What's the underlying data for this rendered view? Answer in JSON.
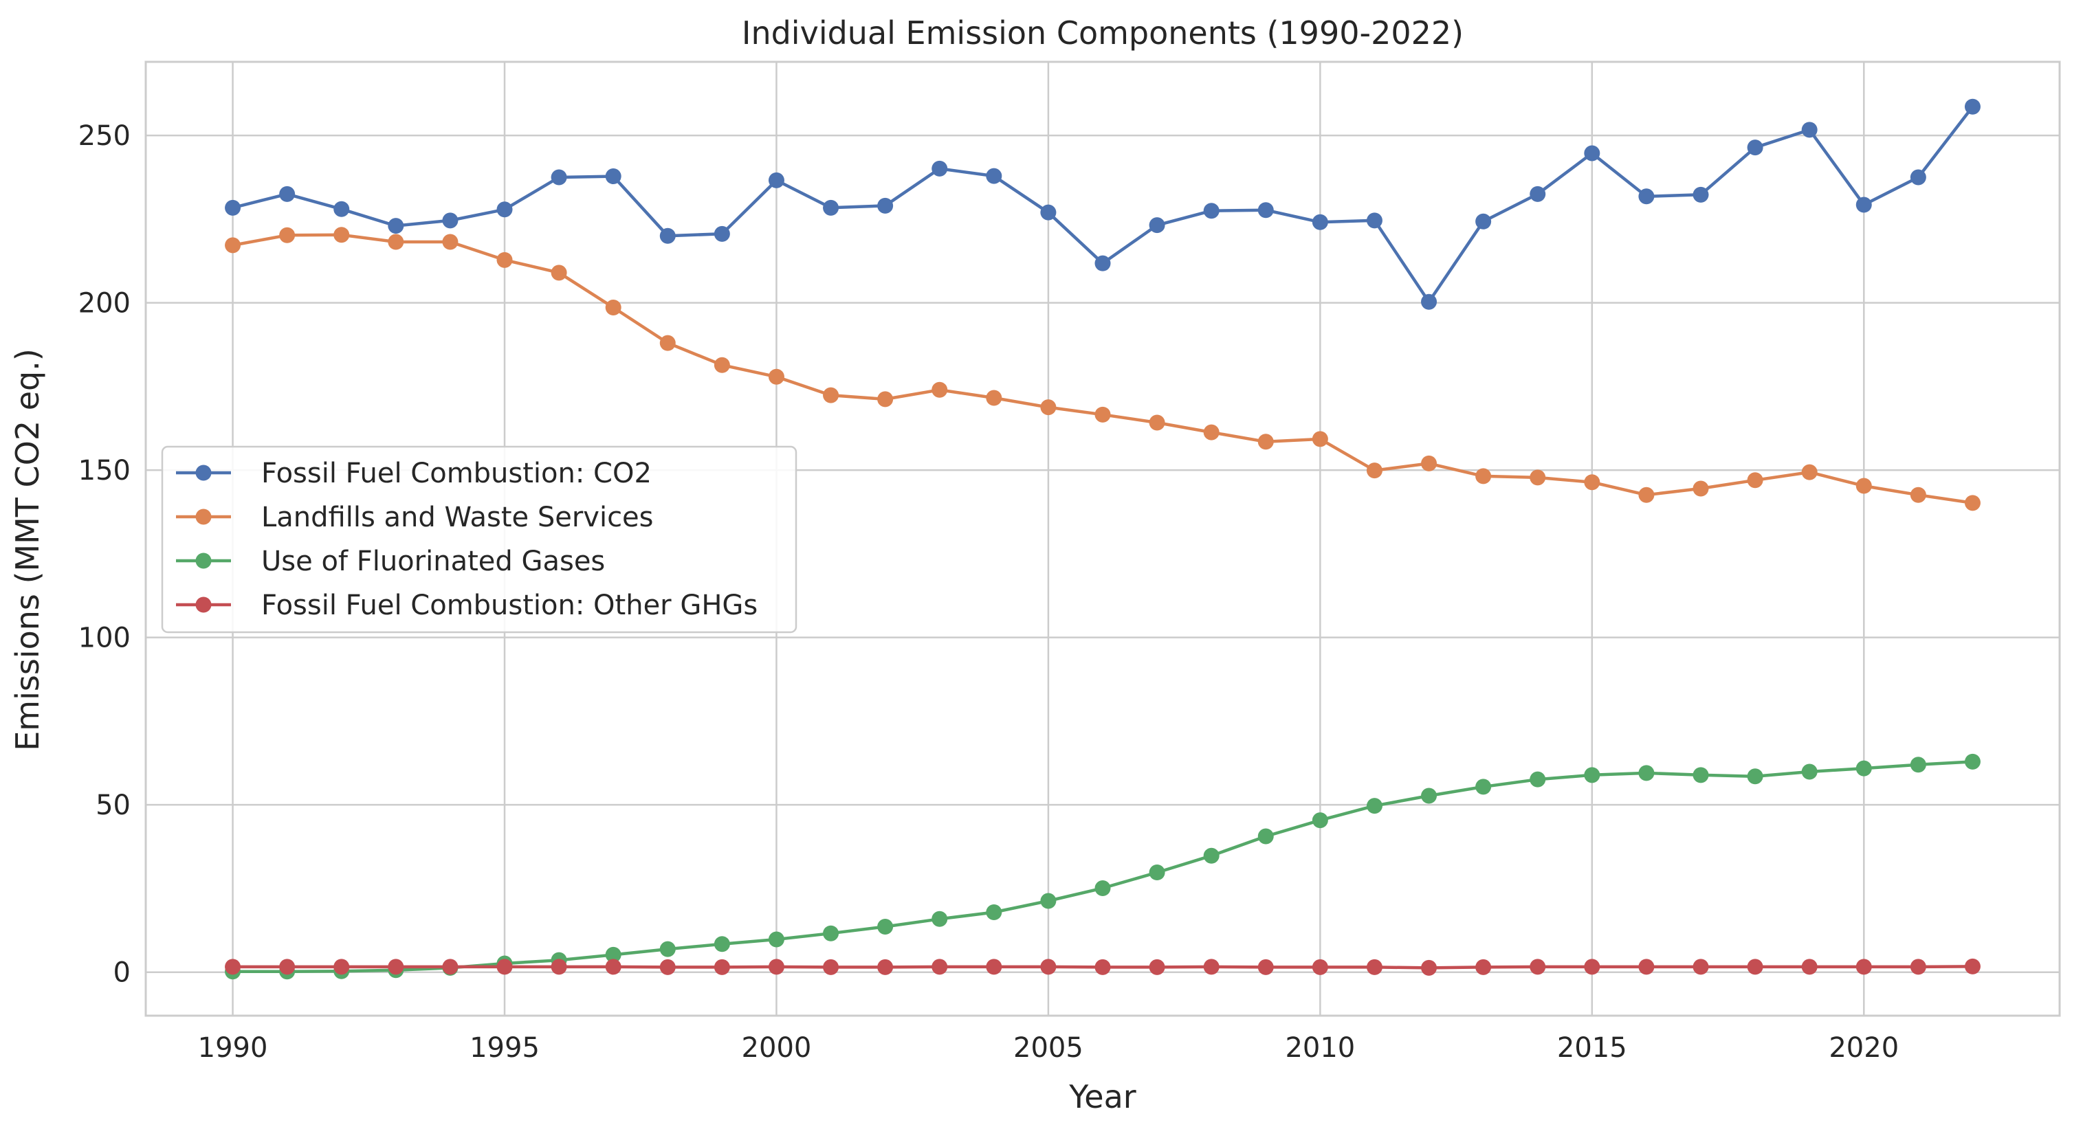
{
  "chart_data": {
    "type": "line",
    "title": "Individual Emission Components (1990-2022)",
    "xlabel": "Year",
    "ylabel": "Emissions (MMT CO2 eq.)",
    "x": [
      1990,
      1991,
      1992,
      1993,
      1994,
      1995,
      1996,
      1997,
      1998,
      1999,
      2000,
      2001,
      2002,
      2003,
      2004,
      2005,
      2006,
      2007,
      2008,
      2009,
      2010,
      2011,
      2012,
      2013,
      2014,
      2015,
      2016,
      2017,
      2018,
      2019,
      2020,
      2021,
      2022
    ],
    "xlim": [
      1988.4,
      2023.6
    ],
    "ylim": [
      -13,
      272
    ],
    "xticks": [
      1990,
      1995,
      2000,
      2005,
      2010,
      2015,
      2020
    ],
    "yticks": [
      0,
      50,
      100,
      150,
      200,
      250
    ],
    "grid": true,
    "legend_position": "center-left",
    "series": [
      {
        "name": "Fossil Fuel Combustion: CO2",
        "color": "#4c72b0",
        "values": [
          228.4,
          232.5,
          228.0,
          223.0,
          224.6,
          227.9,
          237.5,
          237.8,
          220.0,
          220.6,
          236.6,
          228.4,
          229.0,
          240.1,
          237.9,
          227.0,
          211.8,
          223.2,
          227.5,
          227.7,
          224.1,
          224.6,
          200.3,
          224.3,
          232.5,
          244.7,
          231.8,
          232.3,
          246.4,
          251.7,
          229.3,
          237.5,
          258.6
        ]
      },
      {
        "name": "Landfills and Waste Services",
        "color": "#dd8452",
        "values": [
          217.2,
          220.2,
          220.3,
          218.2,
          218.2,
          212.8,
          209.0,
          198.6,
          188.0,
          181.4,
          177.9,
          172.4,
          171.2,
          174.0,
          171.6,
          168.8,
          166.6,
          164.2,
          161.3,
          158.5,
          159.3,
          149.9,
          152.0,
          148.2,
          147.8,
          146.4,
          142.6,
          144.5,
          147.0,
          149.4,
          145.3,
          142.6,
          140.2
        ]
      },
      {
        "name": "Use of Fluorinated Gases",
        "color": "#55a868",
        "values": [
          0.2,
          0.2,
          0.3,
          0.6,
          1.3,
          2.6,
          3.6,
          5.2,
          6.9,
          8.4,
          9.8,
          11.6,
          13.6,
          15.9,
          17.9,
          21.3,
          25.1,
          29.8,
          34.8,
          40.6,
          45.4,
          49.7,
          52.7,
          55.4,
          57.6,
          58.9,
          59.5,
          58.9,
          58.5,
          59.9,
          60.9,
          62.0,
          62.9
        ]
      },
      {
        "name": "Fossil Fuel Combustion: Other GHGs",
        "color": "#c44e52",
        "values": [
          1.6,
          1.6,
          1.6,
          1.6,
          1.6,
          1.6,
          1.6,
          1.6,
          1.5,
          1.5,
          1.6,
          1.5,
          1.5,
          1.6,
          1.6,
          1.6,
          1.5,
          1.5,
          1.6,
          1.5,
          1.5,
          1.5,
          1.3,
          1.5,
          1.6,
          1.6,
          1.6,
          1.6,
          1.6,
          1.6,
          1.6,
          1.6,
          1.7
        ]
      }
    ]
  }
}
